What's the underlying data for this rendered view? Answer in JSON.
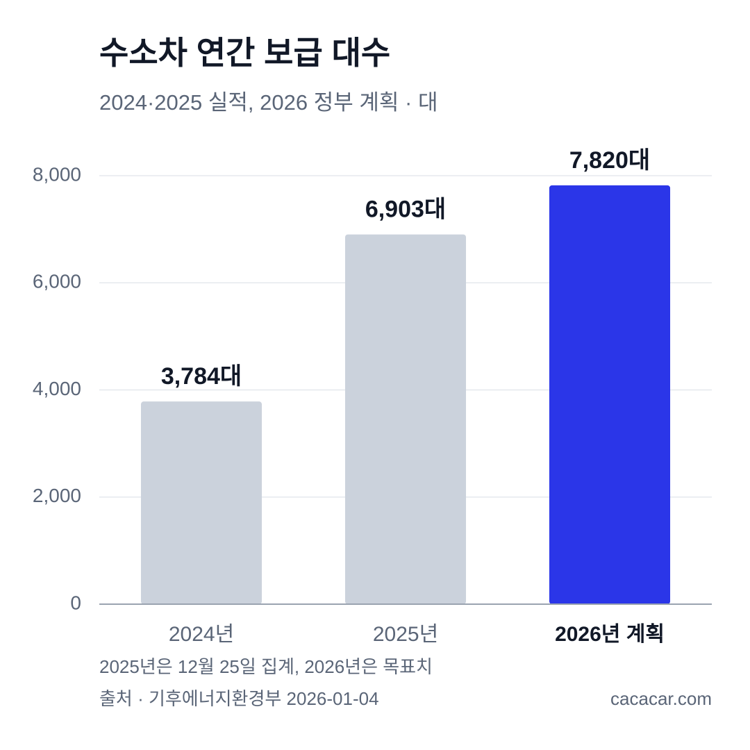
{
  "chart_data": {
    "type": "bar",
    "title": "수소차 연간 보급 대수",
    "subtitle": "2024·2025 실적, 2026 정부 계획 · 대",
    "categories": [
      "2024년",
      "2025년",
      "2026년 계획"
    ],
    "values": [
      3784,
      6903,
      7820
    ],
    "value_labels": [
      "3,784대",
      "6,903대",
      "7,820대"
    ],
    "colors": [
      "#cbd2dc",
      "#cbd2dc",
      "#2b36e8"
    ],
    "ylim": [
      0,
      8000
    ],
    "yticks": [
      0,
      {
        "value": 2000,
        "label": "2,000"
      },
      {
        "value": 4000,
        "label": "4,000"
      },
      {
        "value": 6000,
        "label": "6,000"
      },
      {
        "value": 8000,
        "label": "8,000"
      }
    ],
    "grid": true,
    "notes": [
      "2025년은 12월 25일 집계, 2026년은 목표치",
      "출처 · 기후에너지환경부 2026-01-04"
    ],
    "source_site": "cacacar.com"
  }
}
